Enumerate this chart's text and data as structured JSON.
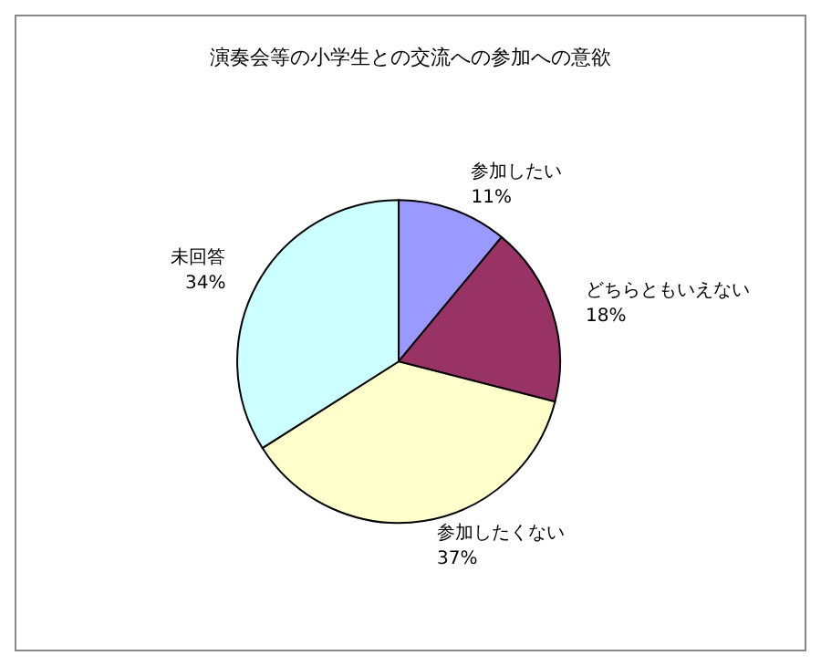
{
  "chart_data": {
    "type": "pie",
    "title": "演奏会等の小学生との交流への参加への意欲",
    "categories": [
      "参加したい",
      "どちらともいえない",
      "参加したくない",
      "未回答"
    ],
    "values": [
      11,
      18,
      37,
      34
    ],
    "value_labels": [
      "11%",
      "18%",
      "37%",
      "34%"
    ],
    "colors": [
      "#9999ff",
      "#993366",
      "#ffffcc",
      "#ccffff"
    ],
    "legend": false
  }
}
